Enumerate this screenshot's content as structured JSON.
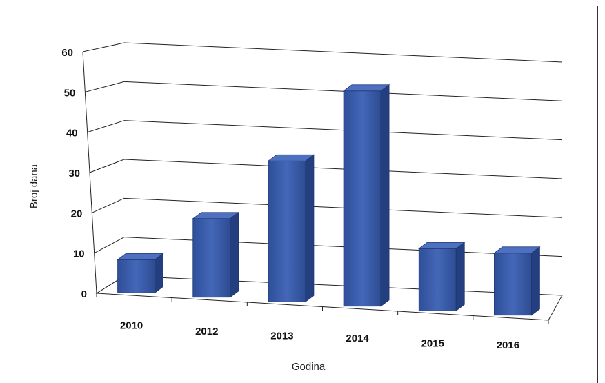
{
  "chart_data": {
    "type": "bar",
    "categories": [
      "2010",
      "2012",
      "2013",
      "2014",
      "2015",
      "2016"
    ],
    "values": [
      8,
      19,
      34,
      52,
      15,
      15
    ],
    "title": "",
    "xlabel": "Godina",
    "ylabel": "Broj dana",
    "ylim": [
      0,
      60
    ],
    "yticks": [
      "0",
      "10",
      "20",
      "30",
      "40",
      "50",
      "60"
    ],
    "grid": true,
    "three_d": true,
    "bar_color": "#3557a6",
    "legend": "none"
  }
}
